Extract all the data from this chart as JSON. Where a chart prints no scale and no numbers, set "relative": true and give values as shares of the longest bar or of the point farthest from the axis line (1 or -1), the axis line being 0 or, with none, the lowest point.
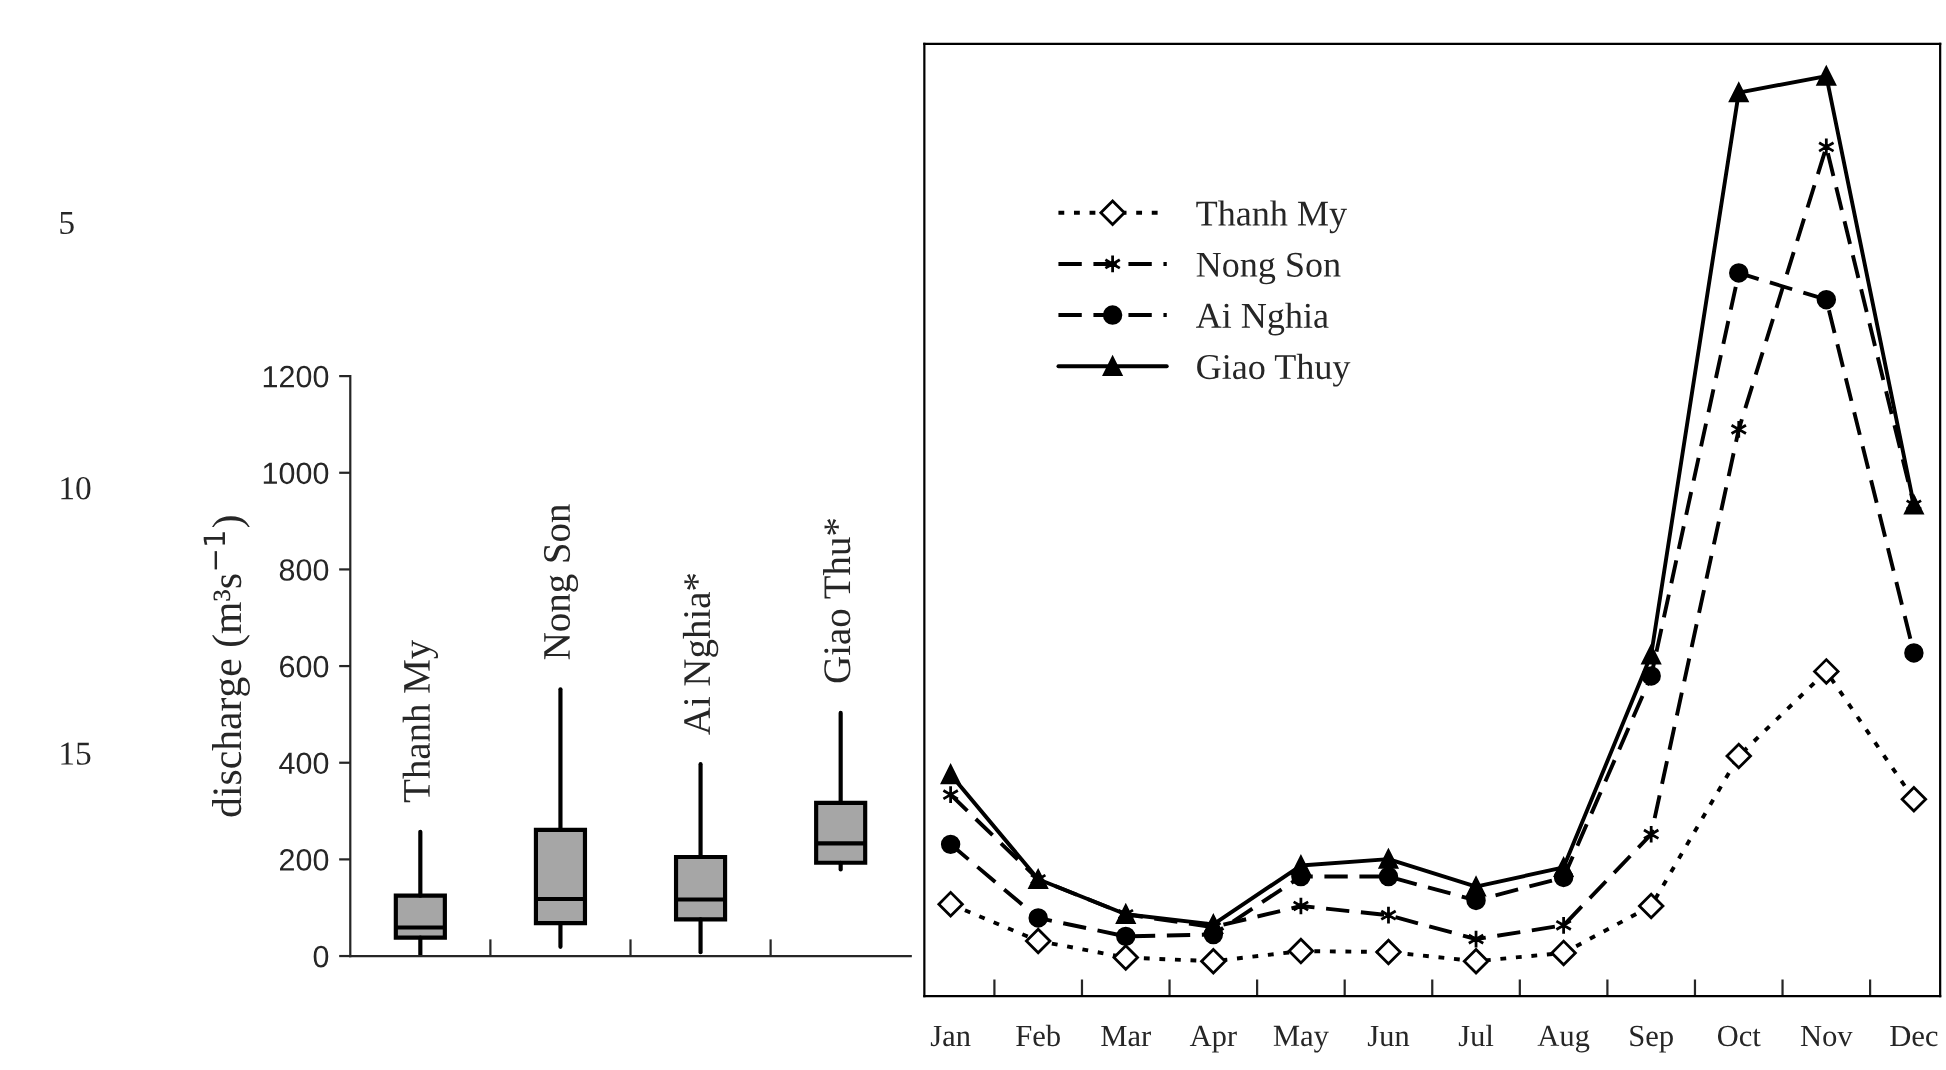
{
  "chart_data": [
    {
      "type": "box",
      "ylabel": "discharge (m³s$^{−1}$)",
      "categories": [
        "Thanh My",
        "Nong Son",
        "Ai Nghia*",
        "Giao Thu*"
      ],
      "ylim": [
        0,
        1200
      ],
      "yticks": [
        0,
        200,
        400,
        600,
        800,
        1000,
        1200
      ],
      "grid": false,
      "annotations": [
        "5",
        "10",
        "15"
      ],
      "series": [
        {
          "color": "#a6a6a6",
          "boxes": [
            {
              "low": 3,
              "q1": 38,
              "median": 59,
              "q3": 125,
              "high": 257
            },
            {
              "low": 19,
              "q1": 68,
              "median": 118,
              "q3": 261,
              "high": 552
            },
            {
              "low": 8,
              "q1": 76,
              "median": 117,
              "q3": 205,
              "high": 397
            },
            {
              "low": 179,
              "q1": 193,
              "median": 233,
              "q3": 317,
              "high": 503
            }
          ]
        }
      ]
    },
    {
      "type": "line",
      "relative": true,
      "categories": [
        "Jan",
        "Feb",
        "Mar",
        "Apr",
        "May",
        "Jun",
        "Jul",
        "Aug",
        "Sep",
        "Oct",
        "Nov",
        "Dec"
      ],
      "legend": "top left",
      "grid": false,
      "series": [
        {
          "name": "Thanh My",
          "color": "#000000",
          "marker": "diamond",
          "line_style": "dotted",
          "values": [
            0.1,
            0.06,
            0.042,
            0.038,
            0.049,
            0.048,
            0.038,
            0.047,
            0.098,
            0.261,
            0.353,
            0.214
          ]
        },
        {
          "name": "Nong Son",
          "color": "#000000",
          "marker": "cross",
          "line_style": "dashed",
          "values": [
            0.219,
            0.127,
            0.089,
            0.075,
            0.098,
            0.088,
            0.062,
            0.077,
            0.176,
            0.616,
            0.923,
            0.534
          ]
        },
        {
          "name": "Ai Nghia",
          "color": "#000000",
          "marker": "circle",
          "line_style": "dashed",
          "values": [
            0.165,
            0.085,
            0.065,
            0.067,
            0.13,
            0.13,
            0.104,
            0.129,
            0.348,
            0.786,
            0.757,
            0.373
          ]
        },
        {
          "name": "Giao Thuy",
          "color": "#000000",
          "marker": "triangle",
          "line_style": "solid",
          "values": [
            0.241,
            0.127,
            0.089,
            0.078,
            0.142,
            0.149,
            0.119,
            0.14,
            0.371,
            0.982,
            1.0,
            0.534
          ]
        }
      ]
    }
  ]
}
